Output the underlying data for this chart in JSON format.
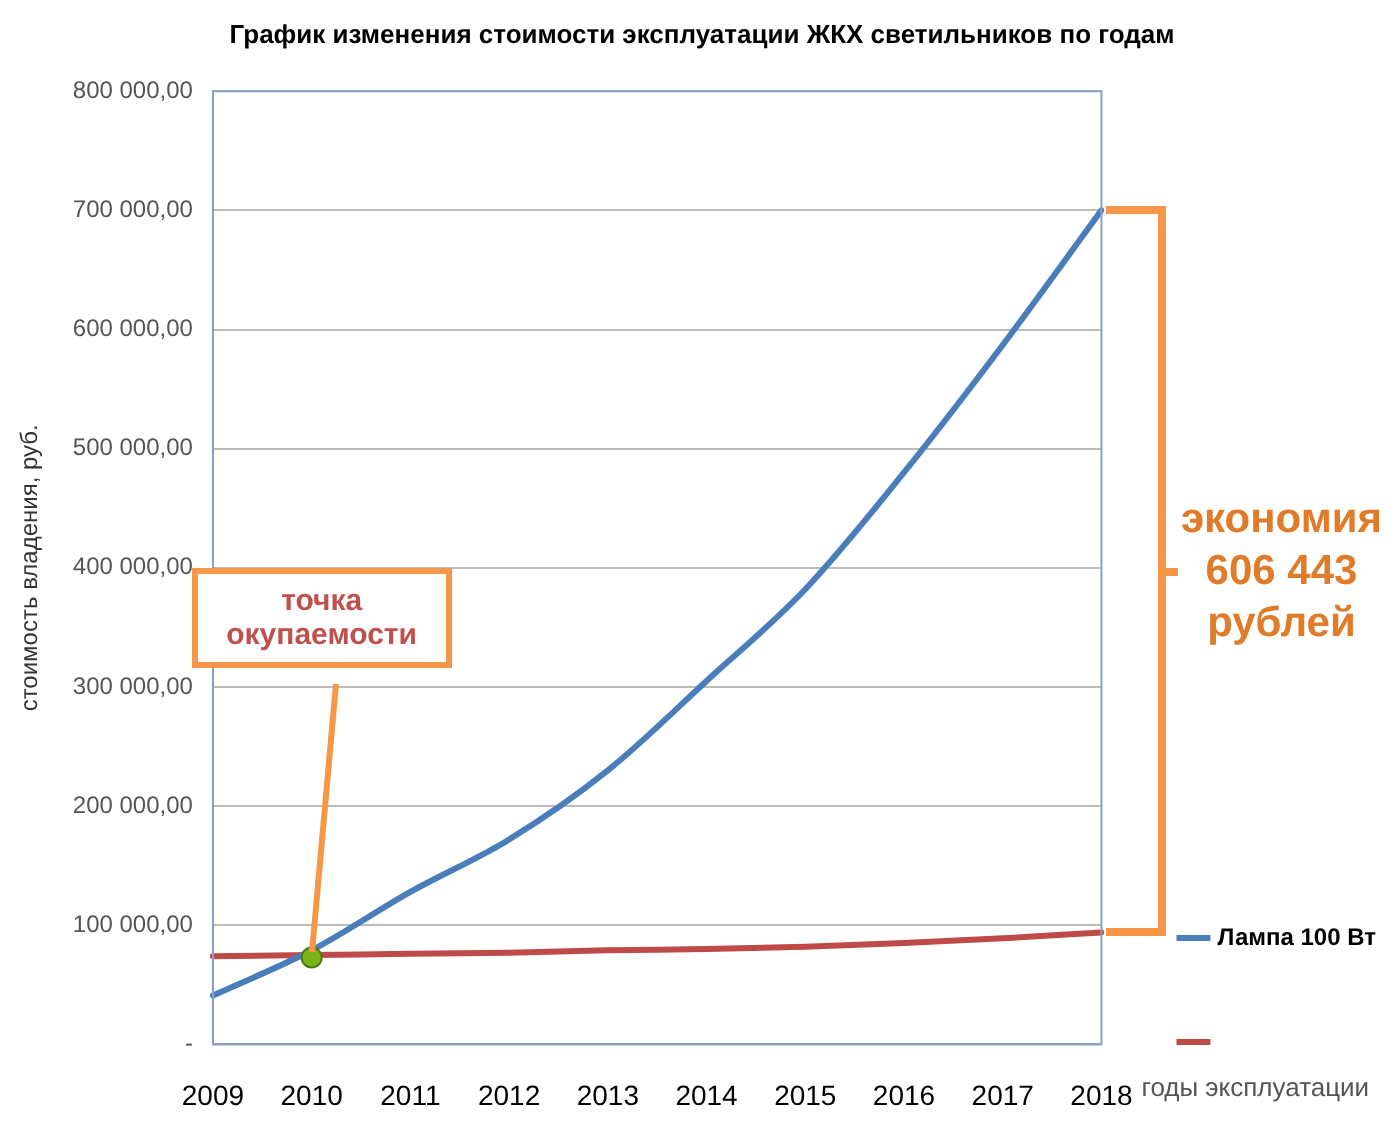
{
  "chart_data": {
    "type": "line",
    "title": "График изменения стоимости эксплуатации ЖКХ светильников по годам",
    "xlabel": "годы эксплуатации",
    "ylabel": "стоимость владения, руб.",
    "categories": [
      "2009",
      "2010",
      "2011",
      "2012",
      "2013",
      "2014",
      "2015",
      "2016",
      "2017",
      "2018"
    ],
    "series": [
      {
        "name": "Лампа 100 Вт",
        "color": "#4a7ebb",
        "values": [
          41000,
          79000,
          128000,
          172000,
          230000,
          305000,
          382000,
          480000,
          587000,
          700000
        ]
      },
      {
        "color": "#be4b48",
        "values": [
          74000,
          75000,
          76000,
          77000,
          79000,
          80000,
          82000,
          85000,
          89000,
          94000
        ]
      }
    ],
    "ylim": [
      0,
      800000
    ],
    "yticks": [
      {
        "value": 0,
        "label": "-"
      },
      {
        "value": 100000,
        "label": "100 000,00"
      },
      {
        "value": 200000,
        "label": "200 000,00"
      },
      {
        "value": 300000,
        "label": "300 000,00"
      },
      {
        "value": 400000,
        "label": "400 000,00"
      },
      {
        "value": 500000,
        "label": "500 000,00"
      },
      {
        "value": 600000,
        "label": "600 000,00"
      },
      {
        "value": 700000,
        "label": "700 000,00"
      },
      {
        "value": 800000,
        "label": "800 000,00"
      }
    ],
    "grid": "y",
    "legend": "bottom right",
    "marker": "none",
    "line_style": "solid",
    "annotations": [
      {
        "text": "точка окупаемости",
        "x": "2010",
        "y": 73000
      },
      "экономия 606 443 рублей"
    ]
  }
}
